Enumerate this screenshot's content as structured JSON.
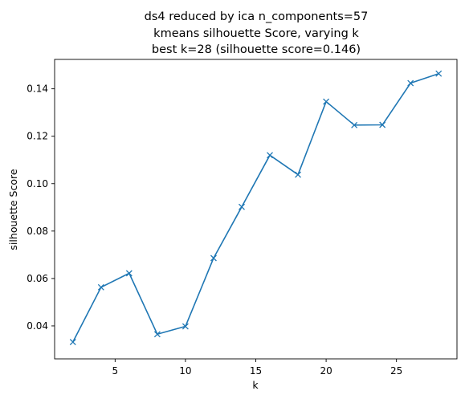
{
  "chart_data": {
    "type": "line",
    "title_lines": [
      "ds4 reduced by ica n_components=57",
      "kmeans silhouette Score, varying k",
      "best k=28 (silhouette score=0.146)"
    ],
    "xlabel": "k",
    "ylabel": "silhouette Score",
    "xlim": [
      0.7,
      29.3
    ],
    "ylim": [
      0.0261,
      0.1524
    ],
    "xticks": [
      5,
      10,
      15,
      20,
      25
    ],
    "yticks": [
      0.04,
      0.06,
      0.08,
      0.1,
      0.12,
      0.14
    ],
    "ytick_labels": [
      "0.04",
      "0.06",
      "0.08",
      "0.10",
      "0.12",
      "0.14"
    ],
    "marker": "x",
    "color": "#1f77b4",
    "series": [
      {
        "x": [
          2,
          4,
          6,
          8,
          10,
          12,
          14,
          16,
          18,
          20,
          22,
          24,
          26,
          28
        ],
        "y": [
          0.0332,
          0.0563,
          0.0622,
          0.0365,
          0.0398,
          0.0686,
          0.0902,
          0.112,
          0.1038,
          0.1346,
          0.1247,
          0.1248,
          0.1424,
          0.1464
        ]
      }
    ]
  }
}
